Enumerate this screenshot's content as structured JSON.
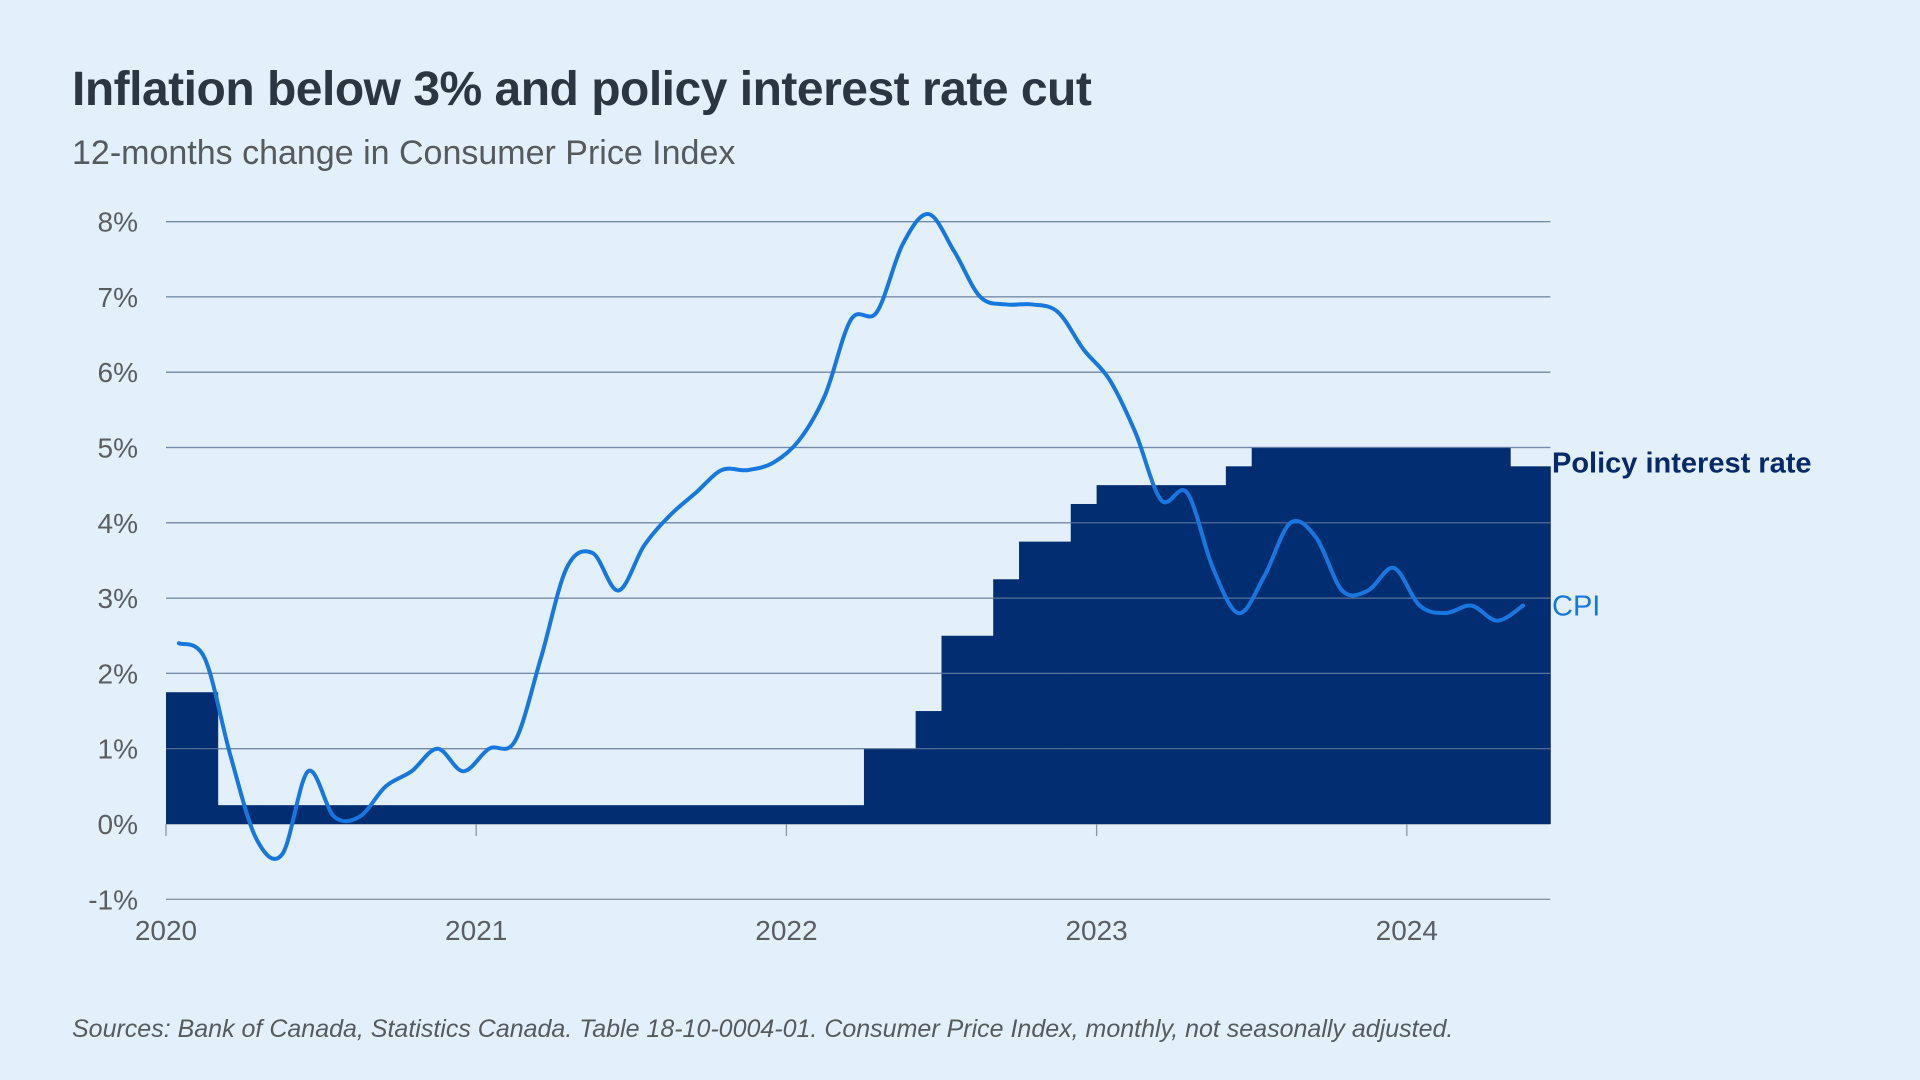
{
  "title": "Inflation below 3% and policy interest rate cut",
  "subtitle": "12-months change in Consumer Price Index",
  "footnote": "Sources: Bank of Canada, Statistics Canada. Table 18-10-0004-01.  Consumer Price Index, monthly, not seasonally adjusted.",
  "colors": {
    "background": "#e3f0fc",
    "policy_rate": "#022d70",
    "cpi": "#1677e0",
    "grid": "#8a96a3"
  },
  "chart_data": {
    "type": "line",
    "title": "Inflation below 3% and policy interest rate cut",
    "subtitle": "12-months change in Consumer Price Index",
    "xlabel": "",
    "ylabel": "",
    "ylim": [
      -1,
      8
    ],
    "y_ticks": [
      8,
      7,
      6,
      5,
      4,
      3,
      2,
      1,
      0,
      -1
    ],
    "y_tick_labels": [
      "8%",
      "7%",
      "6%",
      "5%",
      "4%",
      "3%",
      "2%",
      "1%",
      "0%",
      "-1%"
    ],
    "x_ticks": [
      "2020",
      "2021",
      "2022",
      "2023",
      "2024"
    ],
    "x_start": "2020-01",
    "x_end": "2024-06",
    "grid": true,
    "legend": "direct labels at right",
    "series": [
      {
        "name": "Policy interest rate",
        "type": "step-area",
        "steps": [
          {
            "from": "2020-01",
            "value": 1.75
          },
          {
            "from": "2020-03",
            "value": 0.25
          },
          {
            "from": "2022-04",
            "value": 1.0
          },
          {
            "from": "2022-06",
            "value": 1.5
          },
          {
            "from": "2022-07",
            "value": 2.5
          },
          {
            "from": "2022-09",
            "value": 3.25
          },
          {
            "from": "2022-10",
            "value": 3.75
          },
          {
            "from": "2022-12",
            "value": 4.25
          },
          {
            "from": "2023-01",
            "value": 4.5
          },
          {
            "from": "2023-06",
            "value": 4.75
          },
          {
            "from": "2023-07",
            "value": 5.0
          },
          {
            "from": "2024-05",
            "value": 4.75
          }
        ]
      },
      {
        "name": "CPI",
        "type": "line",
        "start": "2020-01",
        "values": [
          2.4,
          2.2,
          0.9,
          -0.2,
          -0.4,
          0.7,
          0.1,
          0.1,
          0.5,
          0.7,
          1.0,
          0.7,
          1.0,
          1.1,
          2.2,
          3.4,
          3.6,
          3.1,
          3.7,
          4.1,
          4.4,
          4.7,
          4.7,
          4.8,
          5.1,
          5.7,
          6.7,
          6.8,
          7.7,
          8.1,
          7.6,
          7.0,
          6.9,
          6.9,
          6.8,
          6.3,
          5.9,
          5.2,
          4.3,
          4.4,
          3.4,
          2.8,
          3.3,
          4.0,
          3.8,
          3.1,
          3.1,
          3.4,
          2.9,
          2.8,
          2.9,
          2.7,
          2.9
        ]
      }
    ]
  }
}
